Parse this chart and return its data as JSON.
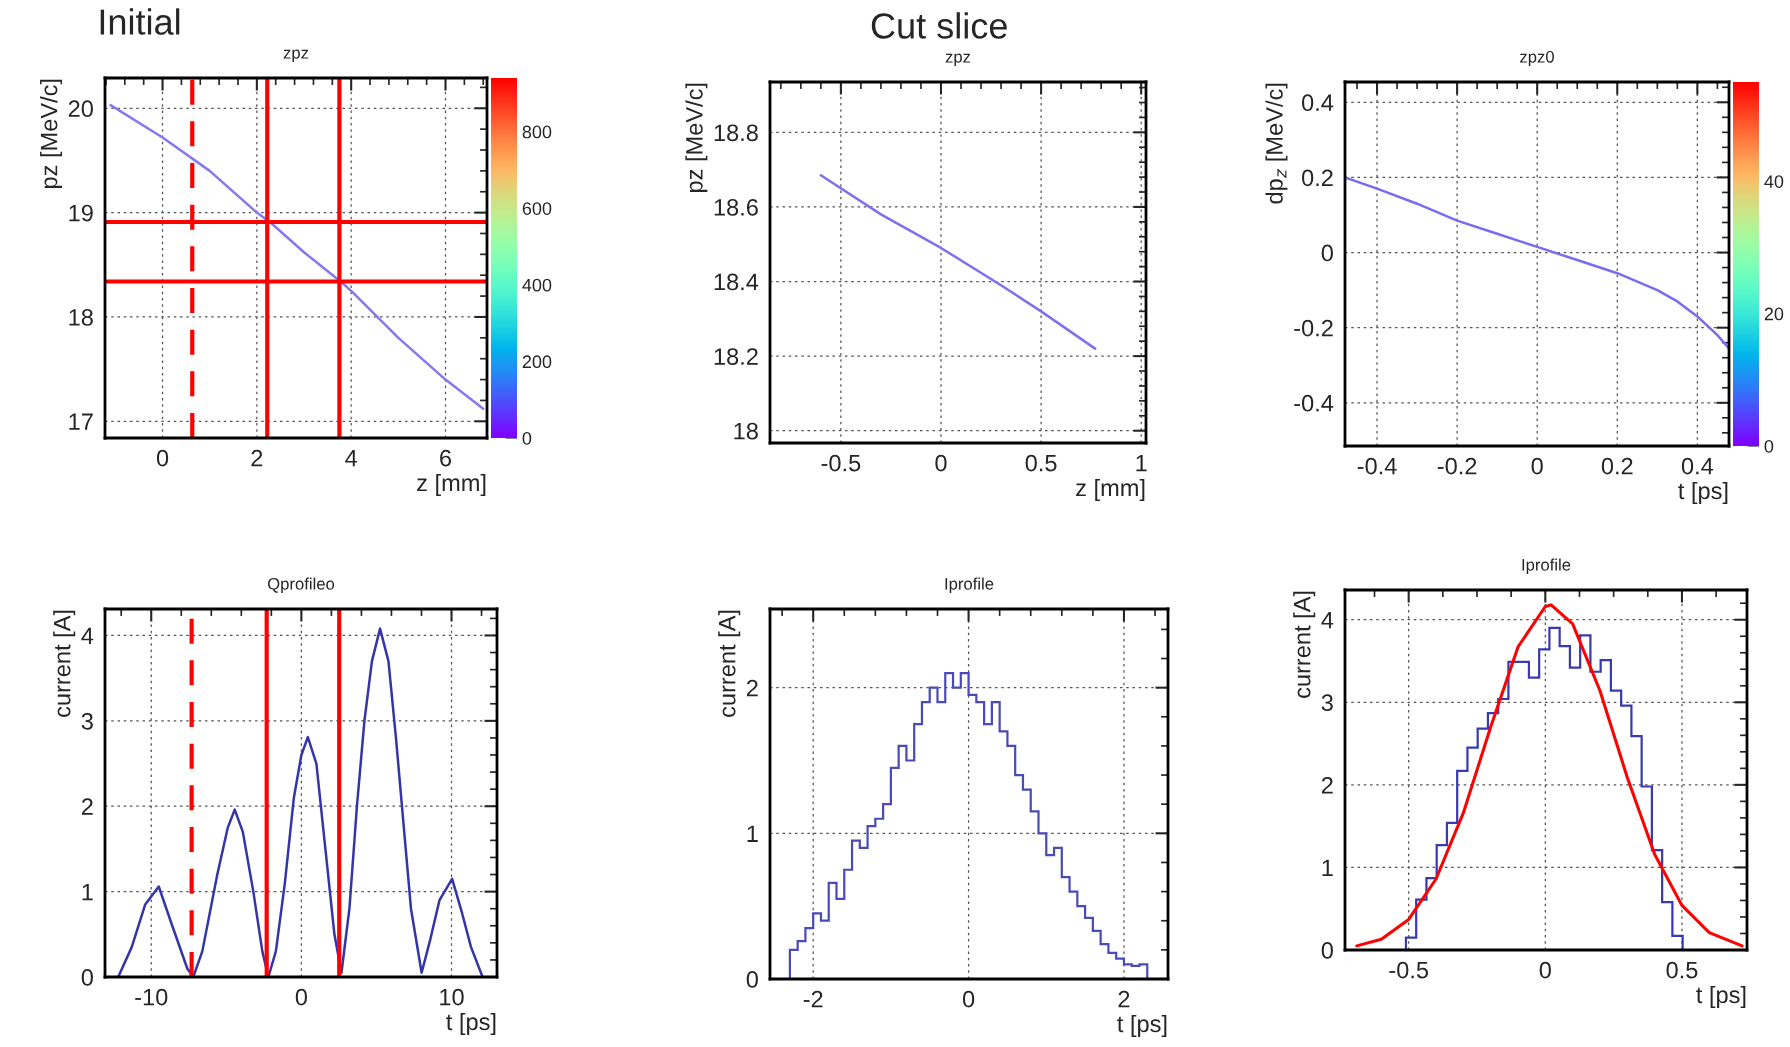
{
  "chart_data": [
    {
      "type": "line",
      "title": "zpz",
      "xlabel": "z [mm]",
      "ylabel": "pz [MeV/c]",
      "annotations": [
        "Initial"
      ],
      "series": [
        {
          "color": "#8878ee",
          "x": [
            -1.1,
            0,
            1,
            2,
            2.3,
            3,
            3.8,
            4,
            5,
            6,
            6.8
          ],
          "values": [
            20.03,
            19.72,
            19.4,
            19.0,
            18.9,
            18.62,
            18.33,
            18.25,
            17.8,
            17.4,
            17.12
          ]
        }
      ],
      "xlim": [
        -1.22,
        6.88
      ],
      "ylim": [
        16.84,
        20.29
      ],
      "xticks": [
        0,
        2,
        4,
        6
      ],
      "yticks": [
        17,
        18,
        19,
        20
      ],
      "clim": [
        0,
        940
      ],
      "cticks": [
        0,
        200,
        400,
        600,
        800
      ],
      "grid": true,
      "ref_lines": [
        {
          "axis": "y",
          "value": 18.91,
          "color": "#ff0000",
          "line_style": "solid"
        },
        {
          "axis": "y",
          "value": 18.34,
          "color": "#ff0000",
          "line_style": "solid"
        },
        {
          "axis": "x",
          "value": 0.63,
          "color": "#ff0000",
          "line_style": "dashed"
        },
        {
          "axis": "x",
          "value": 2.22,
          "color": "#ff0000",
          "line_style": "solid"
        },
        {
          "axis": "x",
          "value": 3.75,
          "color": "#ff0000",
          "line_style": "solid"
        }
      ]
    },
    {
      "type": "line",
      "title": "zpz",
      "xlabel": "z [mm]",
      "ylabel": "pz [MeV/c]",
      "annotations": [
        "Cut slice"
      ],
      "series": [
        {
          "color": "#7f70ee",
          "x": [
            -0.6,
            -0.3,
            0,
            0.3,
            0.5,
            0.77
          ],
          "values": [
            18.685,
            18.58,
            18.49,
            18.39,
            18.32,
            18.22
          ]
        }
      ],
      "xlim": [
        -0.854,
        1.024
      ],
      "ylim": [
        17.967,
        18.935
      ],
      "xticks": [
        -0.5,
        0,
        0.5,
        1
      ],
      "yticks": [
        18,
        18.2,
        18.4,
        18.6,
        18.8
      ],
      "grid": true
    },
    {
      "type": "line",
      "title": "zpz0",
      "xlabel": "t [ps]",
      "ylabel": "dp$_{z}$ [MeV/c]",
      "series": [
        {
          "color": "#7a6cf0",
          "x": [
            -0.48,
            -0.4,
            -0.3,
            -0.2,
            -0.1,
            0,
            0.1,
            0.2,
            0.3,
            0.35,
            0.4,
            0.45,
            0.479
          ],
          "values": [
            0.2,
            0.17,
            0.13,
            0.085,
            0.05,
            0.015,
            -0.02,
            -0.055,
            -0.1,
            -0.13,
            -0.17,
            -0.22,
            -0.255
          ]
        }
      ],
      "xlim": [
        -0.48,
        0.479
      ],
      "ylim": [
        -0.515,
        0.454
      ],
      "xticks": [
        -0.4,
        -0.2,
        0,
        0.2,
        0.4
      ],
      "yticks": [
        -0.4,
        -0.2,
        0,
        0.2,
        0.4
      ],
      "clim": [
        0,
        55
      ],
      "cticks": [
        0,
        20,
        40
      ],
      "grid": true
    },
    {
      "type": "line",
      "title": "Qprofileo",
      "xlabel": "t [ps]",
      "ylabel": "current [A]",
      "series": [
        {
          "color": "#3535aa",
          "x": [
            -12.2,
            -11.3,
            -10.4,
            -9.5,
            -8.6,
            -7.6,
            -7.2,
            -6.6,
            -5.6,
            -4.9,
            -4.44,
            -3.9,
            -3.2,
            -2.6,
            -2.2,
            -1.7,
            -1.1,
            -0.5,
            0,
            0.43,
            1.0,
            1.6,
            2.2,
            2.67,
            3.2,
            3.7,
            4.2,
            4.7,
            5.24,
            5.8,
            6.3,
            6.8,
            7.3,
            8.01,
            8.6,
            9.2,
            10.04,
            10.7,
            11.3,
            12.07
          ],
          "values": [
            0,
            0.35,
            0.85,
            1.06,
            0.6,
            0.1,
            0,
            0.3,
            1.2,
            1.75,
            1.96,
            1.7,
            1.0,
            0.3,
            0,
            0.3,
            1.1,
            2.1,
            2.6,
            2.81,
            2.5,
            1.5,
            0.5,
            0.05,
            0.8,
            2.0,
            3.0,
            3.7,
            4.08,
            3.7,
            2.8,
            1.8,
            0.8,
            0.05,
            0.45,
            0.9,
            1.15,
            0.75,
            0.35,
            0
          ]
        }
      ],
      "xlim": [
        -13.08,
        13.03
      ],
      "ylim": [
        0,
        4.31
      ],
      "xticks": [
        -10,
        0,
        10
      ],
      "yticks": [
        0,
        1,
        2,
        3,
        4
      ],
      "grid": true,
      "ref_lines": [
        {
          "axis": "x",
          "value": -7.31,
          "color": "#ff0000",
          "line_style": "dashed"
        },
        {
          "axis": "x",
          "value": -2.31,
          "color": "#ff0000",
          "line_style": "solid"
        },
        {
          "axis": "x",
          "value": 2.52,
          "color": "#ff0000",
          "line_style": "solid"
        }
      ]
    },
    {
      "type": "histogram",
      "title": "Iprofile",
      "xlabel": "t [ps]",
      "ylabel": "current [A]",
      "color": "#4a4ab8",
      "bins": [
        -2.3,
        -2.2,
        -2.1,
        -2.0,
        -1.9,
        -1.8,
        -1.7,
        -1.6,
        -1.5,
        -1.4,
        -1.3,
        -1.2,
        -1.1,
        -1.0,
        -0.9,
        -0.8,
        -0.7,
        -0.6,
        -0.5,
        -0.4,
        -0.3,
        -0.2,
        -0.1,
        0,
        0.1,
        0.2,
        0.3,
        0.4,
        0.5,
        0.6,
        0.7,
        0.8,
        0.9,
        1.0,
        1.1,
        1.2,
        1.3,
        1.4,
        1.5,
        1.6,
        1.7,
        1.8,
        1.9,
        2.0,
        2.1,
        2.2,
        2.3
      ],
      "values": [
        0.2,
        0.26,
        0.35,
        0.45,
        0.4,
        0.66,
        0.55,
        0.75,
        0.95,
        0.9,
        1.05,
        1.1,
        1.2,
        1.45,
        1.6,
        1.5,
        1.75,
        1.9,
        2.0,
        1.9,
        2.1,
        2.0,
        2.1,
        1.95,
        1.9,
        1.75,
        1.9,
        1.7,
        1.6,
        1.4,
        1.3,
        1.15,
        1.0,
        0.85,
        0.9,
        0.7,
        0.6,
        0.5,
        0.42,
        0.33,
        0.24,
        0.18,
        0.14,
        0.1,
        0.09,
        0.1
      ],
      "xlim": [
        -2.556,
        2.567
      ],
      "ylim": [
        0,
        2.54
      ],
      "xticks": [
        -2,
        0,
        2
      ],
      "yticks": [
        0,
        1,
        2
      ],
      "grid": true
    },
    {
      "type": "histogram",
      "title": "Iprofile",
      "xlabel": "t [ps]",
      "ylabel": "current [A]",
      "color": "#3a3ab0",
      "bins": [
        -0.51,
        -0.4725,
        -0.435,
        -0.3975,
        -0.36,
        -0.3225,
        -0.285,
        -0.2475,
        -0.21,
        -0.1725,
        -0.135,
        -0.0975,
        -0.06,
        -0.0225,
        0.015,
        0.0525,
        0.09,
        0.1275,
        0.165,
        0.2025,
        0.24,
        0.2775,
        0.315,
        0.3525,
        0.39,
        0.4275,
        0.465,
        0.5025
      ],
      "values": [
        0.15,
        0.61,
        0.87,
        1.27,
        1.54,
        2.17,
        2.45,
        2.68,
        2.87,
        3.04,
        3.49,
        3.49,
        3.3,
        3.64,
        3.9,
        3.68,
        3.42,
        3.81,
        3.37,
        3.51,
        3.14,
        2.96,
        2.59,
        1.98,
        1.21,
        0.58,
        0.17
      ],
      "series": [
        {
          "type": "line",
          "color": "#ff0000",
          "x": [
            -0.69,
            -0.6,
            -0.5,
            -0.4,
            -0.3,
            -0.2,
            -0.1,
            0,
            0.021,
            0.1,
            0.2,
            0.3,
            0.4,
            0.5,
            0.6,
            0.72
          ],
          "values": [
            0.05,
            0.13,
            0.37,
            0.86,
            1.66,
            2.7,
            3.67,
            4.16,
            4.18,
            3.95,
            3.14,
            2.09,
            1.16,
            0.54,
            0.21,
            0.05
          ]
        }
      ],
      "xlim": [
        -0.733,
        0.738
      ],
      "ylim": [
        0,
        4.36
      ],
      "xticks": [
        -0.5,
        0,
        0.5
      ],
      "yticks": [
        0,
        1,
        2,
        3,
        4
      ],
      "grid": true
    }
  ]
}
